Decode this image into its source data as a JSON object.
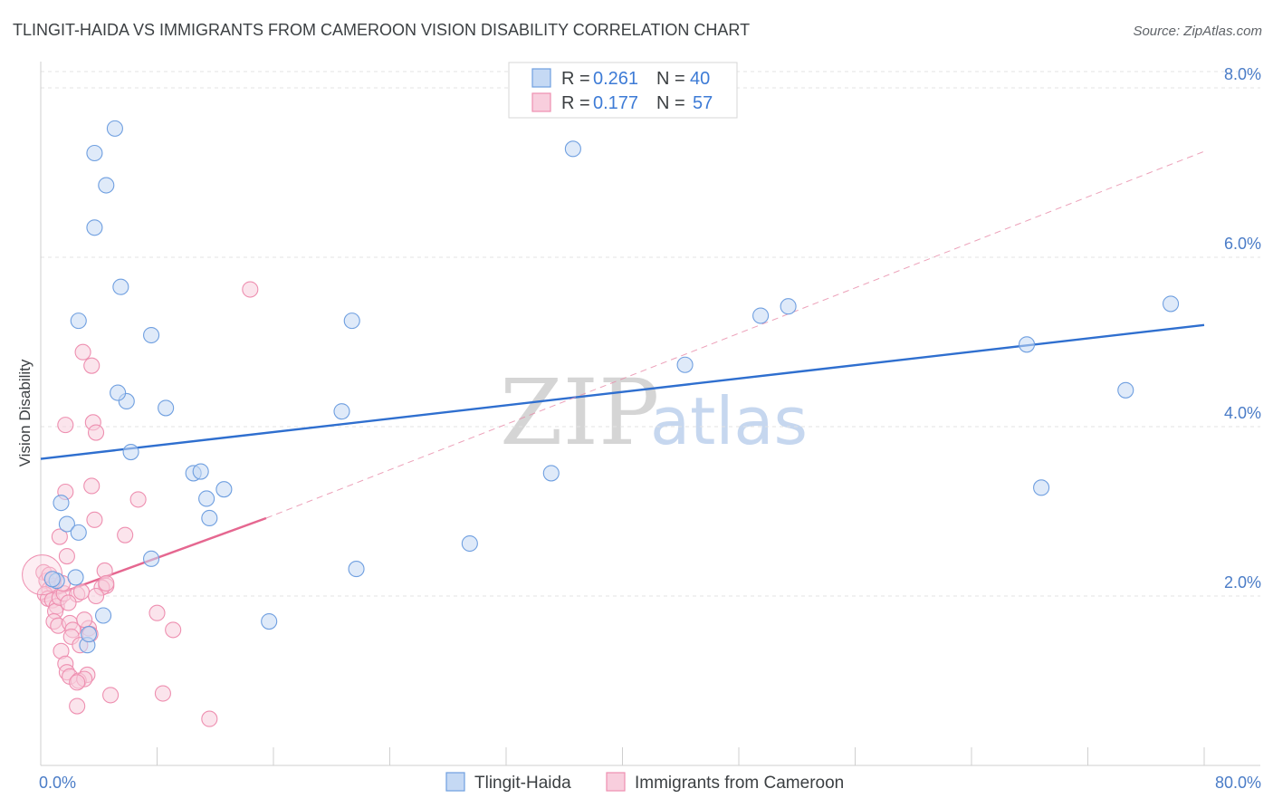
{
  "chart_data": {
    "type": "scatter",
    "title": "TLINGIT-HAIDA VS IMMIGRANTS FROM CAMEROON VISION DISABILITY CORRELATION CHART",
    "source": "Source: ZipAtlas.com",
    "ylabel": "Vision Disability",
    "xlim": [
      0,
      80
    ],
    "ylim": [
      0,
      8.0
    ],
    "y_ticks": [
      {
        "value": 2.0,
        "label": "2.0%"
      },
      {
        "value": 4.0,
        "label": "4.0%"
      },
      {
        "value": 6.0,
        "label": "6.0%"
      },
      {
        "value": 8.0,
        "label": "8.0%"
      }
    ],
    "x_tick_labels": [
      {
        "value": 0,
        "label": "0.0%"
      },
      {
        "value": 80,
        "label": "80.0%"
      }
    ],
    "x_minor_ticks": [
      0,
      8,
      16,
      24,
      32,
      40,
      48,
      56,
      64,
      72,
      80
    ],
    "legend": {
      "position": "top-center",
      "entries": [
        {
          "r_label": "R = ",
          "r_value": "0.261",
          "n_label": "N = ",
          "n_value": "40"
        },
        {
          "r_label": "R = ",
          "r_value": "0.177",
          "n_label": "N = ",
          "n_value": "57"
        }
      ]
    },
    "bottom_legend": [
      "Tlingit-Haida",
      "Immigrants from Cameroon"
    ],
    "watermark": {
      "zip": "ZIP",
      "atlas": "atlas"
    },
    "series": [
      {
        "name": "Tlingit-Haida",
        "color": "#6f9fe0",
        "fill": "#c5d9f4",
        "trend": {
          "x0": 0,
          "y0": 3.62,
          "x1": 80,
          "y1": 5.2,
          "color": "#2f6fcf"
        },
        "points": [
          {
            "x": 5.1,
            "y": 7.52
          },
          {
            "x": 3.7,
            "y": 7.23
          },
          {
            "x": 4.5,
            "y": 6.85
          },
          {
            "x": 3.7,
            "y": 6.35
          },
          {
            "x": 5.5,
            "y": 5.65
          },
          {
            "x": 2.6,
            "y": 5.25
          },
          {
            "x": 7.6,
            "y": 5.08
          },
          {
            "x": 5.9,
            "y": 4.3
          },
          {
            "x": 5.3,
            "y": 4.4
          },
          {
            "x": 8.6,
            "y": 4.22
          },
          {
            "x": 6.2,
            "y": 3.7
          },
          {
            "x": 10.5,
            "y": 3.45
          },
          {
            "x": 11.0,
            "y": 3.47
          },
          {
            "x": 12.6,
            "y": 3.26
          },
          {
            "x": 11.4,
            "y": 3.15
          },
          {
            "x": 11.6,
            "y": 2.92
          },
          {
            "x": 1.4,
            "y": 3.1
          },
          {
            "x": 1.8,
            "y": 2.85
          },
          {
            "x": 2.6,
            "y": 2.75
          },
          {
            "x": 7.6,
            "y": 2.44
          },
          {
            "x": 1.1,
            "y": 2.18
          },
          {
            "x": 0.8,
            "y": 2.2
          },
          {
            "x": 4.3,
            "y": 1.77
          },
          {
            "x": 3.2,
            "y": 1.42
          },
          {
            "x": 3.3,
            "y": 1.55
          },
          {
            "x": 15.7,
            "y": 1.7
          },
          {
            "x": 21.4,
            "y": 5.25
          },
          {
            "x": 20.7,
            "y": 4.18
          },
          {
            "x": 21.7,
            "y": 2.32
          },
          {
            "x": 29.5,
            "y": 2.62
          },
          {
            "x": 35.1,
            "y": 3.45
          },
          {
            "x": 36.6,
            "y": 7.28
          },
          {
            "x": 44.3,
            "y": 4.73
          },
          {
            "x": 49.5,
            "y": 5.31
          },
          {
            "x": 51.4,
            "y": 5.42
          },
          {
            "x": 67.8,
            "y": 4.97
          },
          {
            "x": 68.8,
            "y": 3.28
          },
          {
            "x": 74.6,
            "y": 4.43
          },
          {
            "x": 77.7,
            "y": 5.45
          },
          {
            "x": 2.4,
            "y": 2.22
          }
        ]
      },
      {
        "name": "Immigrants from Cameroon",
        "color": "#ee8fb0",
        "fill": "#f8cedd",
        "trend": {
          "x0": 0,
          "y0": 1.95,
          "x1": 15.5,
          "y1": 2.92,
          "color": "#e56790"
        },
        "trend_extension": {
          "x0": 15.5,
          "y0": 2.92,
          "x1": 80,
          "y1": 7.25,
          "color": "#e88aa8"
        },
        "points": [
          {
            "x": 14.4,
            "y": 5.62
          },
          {
            "x": 2.9,
            "y": 4.88
          },
          {
            "x": 3.5,
            "y": 4.72
          },
          {
            "x": 1.7,
            "y": 4.02
          },
          {
            "x": 3.6,
            "y": 4.05
          },
          {
            "x": 3.8,
            "y": 3.93
          },
          {
            "x": 1.7,
            "y": 3.23
          },
          {
            "x": 3.5,
            "y": 3.3
          },
          {
            "x": 6.7,
            "y": 3.14
          },
          {
            "x": 3.7,
            "y": 2.9
          },
          {
            "x": 1.3,
            "y": 2.7
          },
          {
            "x": 5.8,
            "y": 2.72
          },
          {
            "x": 1.8,
            "y": 2.47
          },
          {
            "x": 4.4,
            "y": 2.3
          },
          {
            "x": 4.5,
            "y": 2.12
          },
          {
            "x": 4.2,
            "y": 2.1
          },
          {
            "x": 0.2,
            "y": 2.28
          },
          {
            "x": 0.4,
            "y": 2.18
          },
          {
            "x": 0.6,
            "y": 2.08
          },
          {
            "x": 0.9,
            "y": 2.12
          },
          {
            "x": 0.3,
            "y": 2.02
          },
          {
            "x": 0.5,
            "y": 1.97
          },
          {
            "x": 0.8,
            "y": 1.95
          },
          {
            "x": 1.1,
            "y": 1.88
          },
          {
            "x": 1.0,
            "y": 1.82
          },
          {
            "x": 1.3,
            "y": 1.98
          },
          {
            "x": 1.6,
            "y": 2.03
          },
          {
            "x": 2.5,
            "y": 2.02
          },
          {
            "x": 3.8,
            "y": 2.0
          },
          {
            "x": 0.9,
            "y": 1.7
          },
          {
            "x": 1.2,
            "y": 1.65
          },
          {
            "x": 2.0,
            "y": 1.68
          },
          {
            "x": 2.2,
            "y": 1.6
          },
          {
            "x": 3.3,
            "y": 1.62
          },
          {
            "x": 3.4,
            "y": 1.55
          },
          {
            "x": 2.1,
            "y": 1.52
          },
          {
            "x": 2.7,
            "y": 1.42
          },
          {
            "x": 1.4,
            "y": 1.35
          },
          {
            "x": 1.7,
            "y": 1.2
          },
          {
            "x": 1.8,
            "y": 1.1
          },
          {
            "x": 2.0,
            "y": 1.05
          },
          {
            "x": 3.2,
            "y": 1.07
          },
          {
            "x": 2.6,
            "y": 1.0
          },
          {
            "x": 3.0,
            "y": 1.02
          },
          {
            "x": 2.5,
            "y": 0.98
          },
          {
            "x": 8.0,
            "y": 1.8
          },
          {
            "x": 9.1,
            "y": 1.6
          },
          {
            "x": 4.8,
            "y": 0.83
          },
          {
            "x": 8.4,
            "y": 0.85
          },
          {
            "x": 2.5,
            "y": 0.7
          },
          {
            "x": 11.6,
            "y": 0.55
          },
          {
            "x": 4.5,
            "y": 2.15
          },
          {
            "x": 2.8,
            "y": 2.05
          },
          {
            "x": 1.9,
            "y": 1.92
          },
          {
            "x": 3.0,
            "y": 1.72
          },
          {
            "x": 0.6,
            "y": 2.25
          },
          {
            "x": 1.5,
            "y": 2.15
          }
        ]
      }
    ]
  }
}
